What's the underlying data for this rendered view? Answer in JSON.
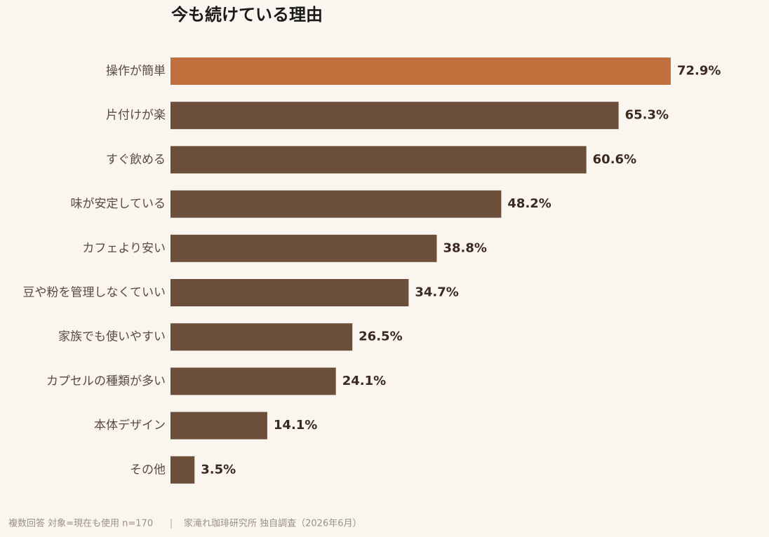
{
  "chart_data": {
    "type": "bar",
    "orientation": "horizontal",
    "title": "今も続けている理由",
    "categories": [
      "操作が簡単",
      "片付けが楽",
      "すぐ飲める",
      "味が安定している",
      "カフェより安い",
      "豆や粉を管理しなくていい",
      "家族でも使いやすい",
      "カプセルの種類が多い",
      "本体デザイン",
      "その他"
    ],
    "values": [
      72.9,
      65.3,
      60.6,
      48.2,
      38.8,
      34.7,
      26.5,
      24.1,
      14.1,
      3.5
    ],
    "value_labels": [
      "72.9%",
      "65.3%",
      "60.6%",
      "48.2%",
      "38.8%",
      "34.7%",
      "26.5%",
      "24.1%",
      "14.1%",
      "3.5%"
    ],
    "colors": [
      "#c0703c",
      "#6b4f3a",
      "#6b4f3a",
      "#6b4f3a",
      "#6b4f3a",
      "#6b4f3a",
      "#6b4f3a",
      "#6b4f3a",
      "#6b4f3a",
      "#6b4f3a"
    ],
    "note": "複数回答 対象=現在も使用 n=170",
    "source": "家滝れ珈琲研究所 独自調査（2026年6月）"
  }
}
